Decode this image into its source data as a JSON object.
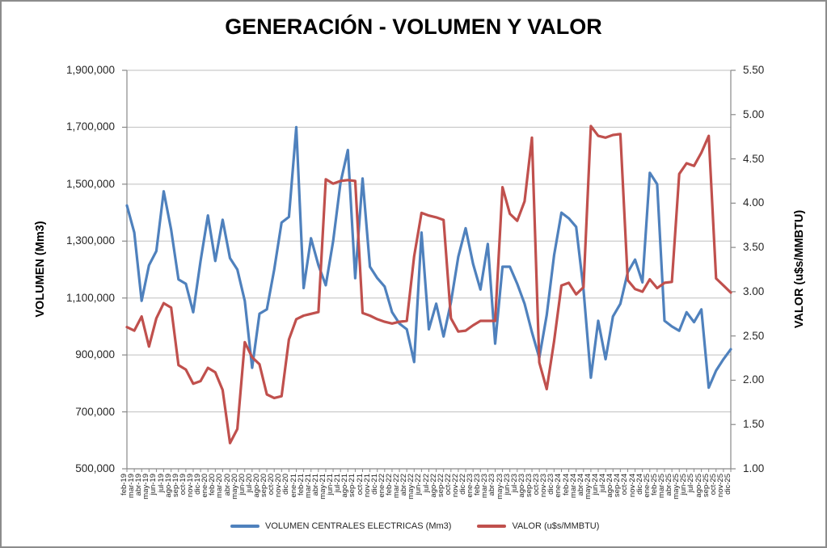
{
  "window": {
    "background": "#FFFFFF",
    "border_color": "#8C8C8C"
  },
  "chart_data": {
    "type": "line",
    "title": "GENERACIÓN - VOLUMEN Y VALOR",
    "grid": true,
    "legend_position": "bottom",
    "colors": {
      "grid": "#BFBFBF",
      "axis": "#898989",
      "tick_text": "#262626"
    },
    "categories": [
      "feb-19",
      "mar-19",
      "abr-19",
      "may-19",
      "jun-19",
      "jul-19",
      "ago-19",
      "sep-19",
      "oct-19",
      "nov-19",
      "dic-19",
      "ene-20",
      "feb-20",
      "mar-20",
      "abr-20",
      "may-20",
      "jun-20",
      "jul-20",
      "ago-20",
      "sep-20",
      "oct-20",
      "nov-20",
      "dic-20",
      "ene-21",
      "feb-21",
      "mar-21",
      "abr-21",
      "may-21",
      "jun-21",
      "jul-21",
      "ago-21",
      "sep-21",
      "oct-21",
      "nov-21",
      "dic-21",
      "ene-22",
      "feb-22",
      "mar-22",
      "abr-22",
      "may-22",
      "jun-22",
      "jul-22",
      "ago-22",
      "sep-22",
      "oct-22",
      "nov-22",
      "dic-22",
      "ene-23",
      "feb-23",
      "mar-23",
      "abr-23",
      "may-23",
      "jun-23",
      "jul-23",
      "ago-23",
      "sep-23",
      "oct-23",
      "nov-23",
      "dic-23",
      "ene-24",
      "feb-24",
      "mar-24",
      "abr-24",
      "may-24",
      "jun-24",
      "jul-24",
      "ago-24",
      "sep-24",
      "oct-24",
      "nov-24",
      "dic-24",
      "ene-25",
      "feb-25",
      "mar-25",
      "abr-25",
      "may-25",
      "jun-25",
      "jul-25",
      "ago-25",
      "sep-25",
      "oct-25",
      "nov-25",
      "dic-25"
    ],
    "series": [
      {
        "name": "VOLUMEN CENTRALES ELECTRICAS (Mm3)",
        "axis": "left",
        "color": "#4F81BD",
        "values": [
          1425000,
          1330000,
          1090000,
          1215000,
          1265000,
          1475000,
          1340000,
          1165000,
          1150000,
          1050000,
          1230000,
          1390000,
          1230000,
          1375000,
          1240000,
          1200000,
          1090000,
          855000,
          1045000,
          1060000,
          1200000,
          1365000,
          1385000,
          1700000,
          1135000,
          1310000,
          1215000,
          1145000,
          1300000,
          1505000,
          1620000,
          1170000,
          1520000,
          1210000,
          1170000,
          1140000,
          1050000,
          1010000,
          990000,
          875000,
          1330000,
          990000,
          1080000,
          965000,
          1085000,
          1245000,
          1345000,
          1220000,
          1130000,
          1290000,
          940000,
          1210000,
          1210000,
          1150000,
          1080000,
          980000,
          890000,
          1040000,
          1250000,
          1400000,
          1380000,
          1350000,
          1130000,
          820000,
          1020000,
          885000,
          1035000,
          1080000,
          1190000,
          1235000,
          1155000,
          1540000,
          1500000,
          1020000,
          1000000,
          985000,
          1050000,
          1015000,
          1060000,
          785000,
          845000,
          885000,
          920000
        ]
      },
      {
        "name": "VALOR (u$s/MMBTU)",
        "axis": "right",
        "color": "#C0504D",
        "values": [
          2.6,
          2.56,
          2.72,
          2.38,
          2.7,
          2.87,
          2.82,
          2.17,
          2.12,
          1.96,
          1.99,
          2.14,
          2.09,
          1.89,
          1.29,
          1.45,
          2.43,
          2.26,
          2.18,
          1.84,
          1.8,
          1.82,
          2.46,
          2.69,
          2.73,
          2.75,
          2.77,
          4.27,
          4.22,
          4.25,
          4.26,
          4.25,
          2.76,
          2.73,
          2.69,
          2.66,
          2.64,
          2.66,
          2.67,
          3.4,
          3.89,
          3.86,
          3.84,
          3.81,
          2.7,
          2.55,
          2.56,
          2.62,
          2.67,
          2.67,
          2.67,
          4.18,
          3.88,
          3.8,
          4.02,
          4.74,
          2.2,
          1.9,
          2.44,
          3.07,
          3.1,
          2.97,
          3.05,
          4.87,
          4.76,
          4.74,
          4.77,
          4.78,
          3.13,
          3.03,
          3.0,
          3.14,
          3.04,
          3.1,
          3.11,
          4.33,
          4.45,
          4.42,
          4.57,
          4.76,
          3.15,
          3.07,
          2.99
        ]
      }
    ],
    "left_axis": {
      "label": "VOLUMEN (Mm3)",
      "min": 500000,
      "max": 1900000,
      "step": 200000,
      "ticks": [
        "1,900,000",
        "1,700,000",
        "1,500,000",
        "1,300,000",
        "1,100,000",
        "900,000",
        "700,000",
        "500,000"
      ]
    },
    "right_axis": {
      "label": "VALOR (u$s/MMBTU)",
      "min": 1.0,
      "max": 5.5,
      "step": 0.5,
      "ticks": [
        "5.50",
        "5.00",
        "4.50",
        "4.00",
        "3.50",
        "3.00",
        "2.50",
        "2.00",
        "1.50",
        "1.00"
      ]
    },
    "legend": {
      "volumen_label": "VOLUMEN CENTRALES ELECTRICAS (Mm3)",
      "valor_label": "VALOR (u$s/MMBTU)"
    }
  }
}
